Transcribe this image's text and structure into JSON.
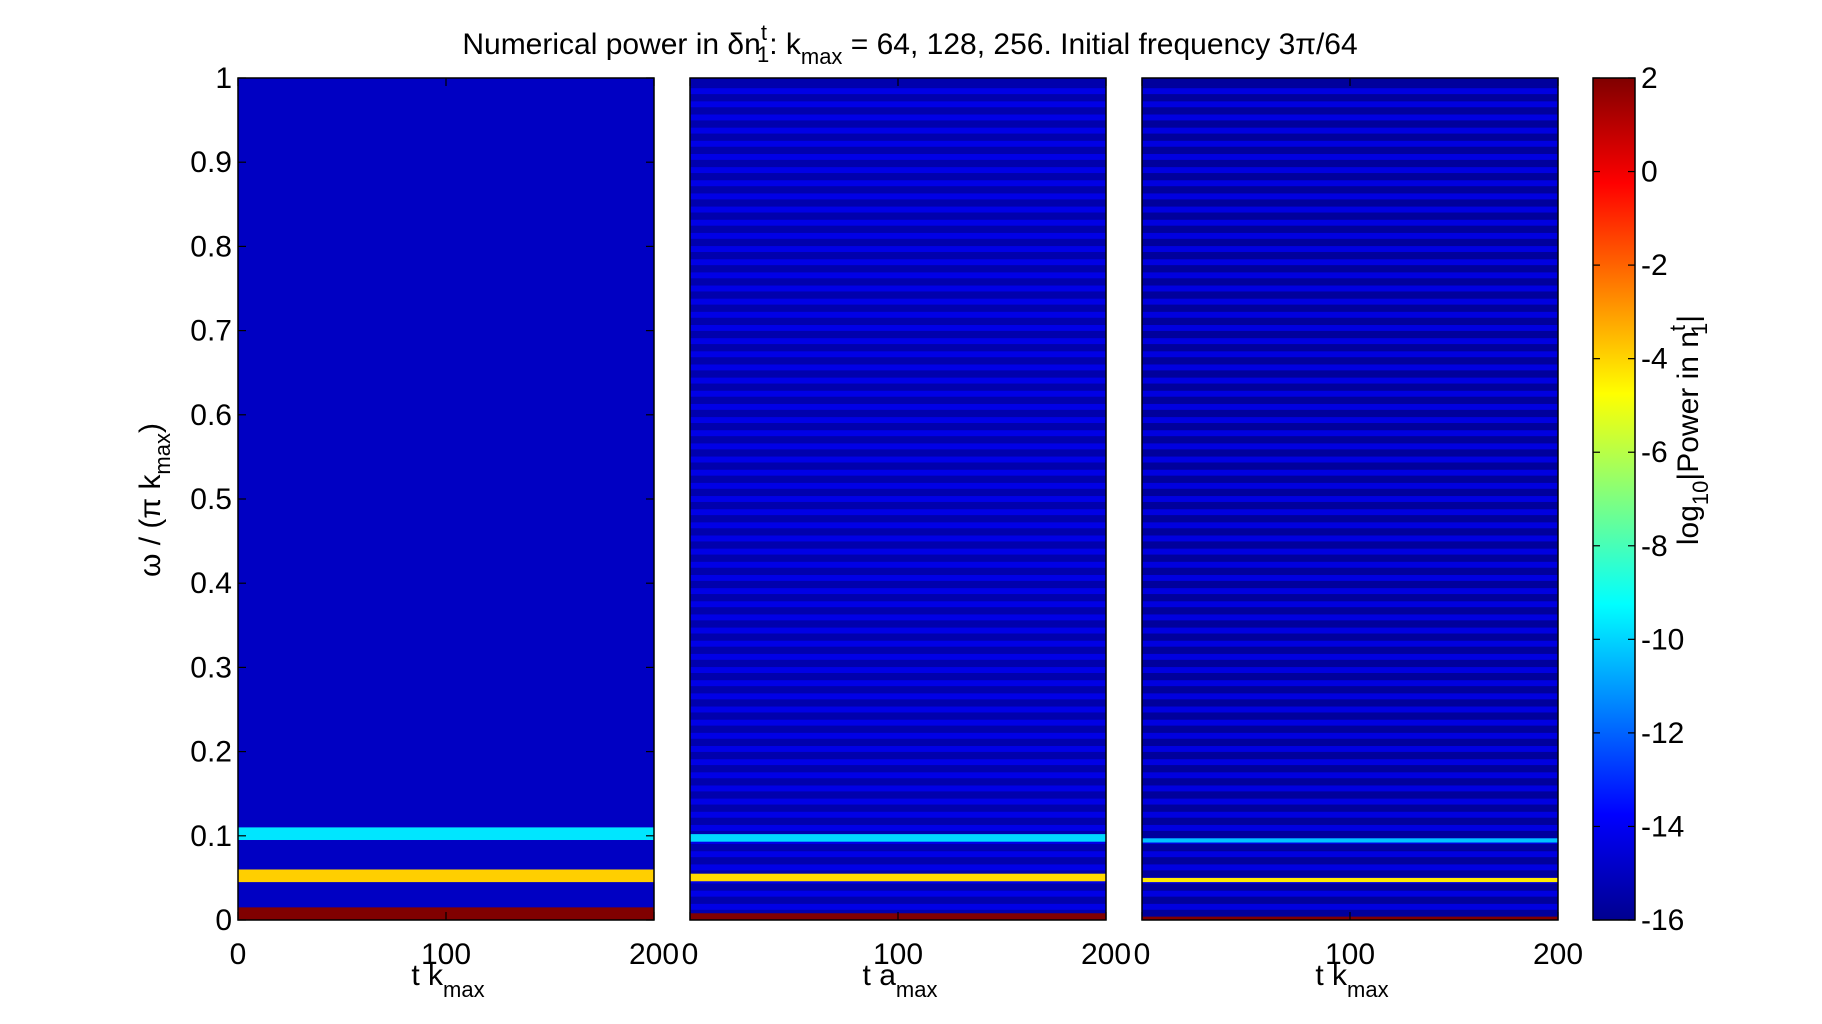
{
  "figure": {
    "title": {
      "prefix": "Numerical power in δn",
      "sup": "t",
      "sub": "1",
      "mid": ": k",
      "mid_sub": "max",
      "suffix": " = 64, 128, 256. Initial frequency 3π/64"
    }
  },
  "chart_data": [
    {
      "type": "heatmap",
      "panel": "kmax-64",
      "k_max": 64,
      "xlabel": {
        "main": "t k",
        "sub": "max"
      },
      "ylabel": {
        "main": "ω / (π k",
        "sub": "max",
        "close": ")"
      },
      "xlim": [
        0,
        200
      ],
      "ylim": [
        0,
        1
      ],
      "xticks": [
        "0",
        "100",
        "200"
      ],
      "yticks": [
        "0",
        "0.1",
        "0.2",
        "0.3",
        "0.4",
        "0.5",
        "0.6",
        "0.7",
        "0.8",
        "0.9",
        "1"
      ],
      "background_log10_power": -14.8,
      "bands": [
        {
          "omega": [
            0.0,
            0.015
          ],
          "log10_power": 2
        },
        {
          "omega": [
            0.045,
            0.06
          ],
          "log10_power": -3.9
        },
        {
          "omega": [
            0.095,
            0.11
          ],
          "log10_power": -9.7
        }
      ]
    },
    {
      "type": "heatmap",
      "panel": "kmax-128",
      "k_max": 128,
      "xlabel": {
        "main": "t a",
        "sub": "max"
      },
      "xlim": [
        0,
        200
      ],
      "ylim": [
        0,
        1
      ],
      "xticks": [
        "0",
        "100",
        "200"
      ],
      "background_log10_power": -15.2,
      "stripe_log10_power": -14.2,
      "stripe_period_omega": 0.015625,
      "bands": [
        {
          "omega": [
            0.0,
            0.008
          ],
          "log10_power": 2
        },
        {
          "omega": [
            0.046,
            0.055
          ],
          "log10_power": -4.1
        },
        {
          "omega": [
            0.093,
            0.102
          ],
          "log10_power": -9.9
        }
      ]
    },
    {
      "type": "heatmap",
      "panel": "kmax-256",
      "k_max": 256,
      "xlabel": {
        "main": "t k",
        "sub": "max"
      },
      "xlim": [
        0,
        200
      ],
      "ylim": [
        0,
        1
      ],
      "xticks": [
        "0",
        "100",
        "200"
      ],
      "background_log10_power": -15.5,
      "stripe_log10_power": -14.3,
      "stripe_period_omega": 0.015625,
      "bands": [
        {
          "omega": [
            0.0,
            0.004
          ],
          "log10_power": 2
        },
        {
          "omega": [
            0.045,
            0.05
          ],
          "log10_power": -4.4
        },
        {
          "omega": [
            0.092,
            0.097
          ],
          "log10_power": -10.3
        }
      ]
    }
  ],
  "colorbar": {
    "range": [
      -16,
      2
    ],
    "ticks": [
      "2",
      "0",
      "-2",
      "-4",
      "-6",
      "-8",
      "-10",
      "-12",
      "-14",
      "-16"
    ],
    "label": {
      "pre": "log",
      "sub1": "10",
      "mid": "|Power in n",
      "sup": "t",
      "sub2": "1",
      "close": "|"
    },
    "colormap": "jet"
  }
}
